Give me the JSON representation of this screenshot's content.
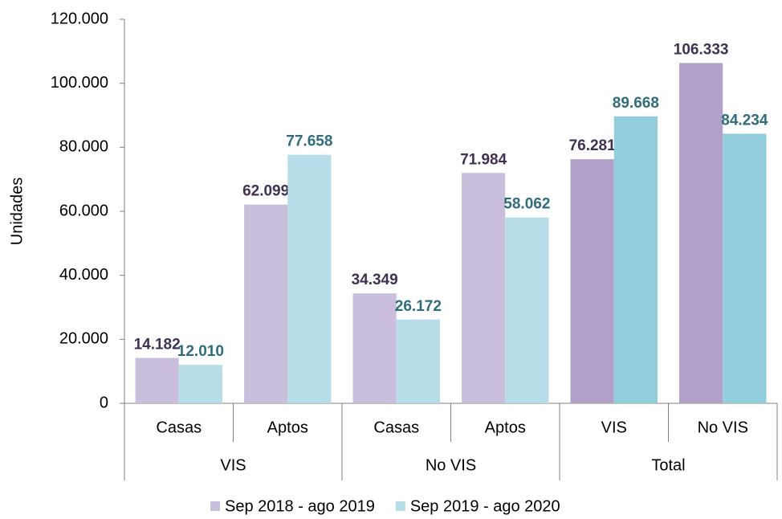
{
  "chart_data": {
    "type": "bar",
    "y_label": "Unidades",
    "groups": [
      {
        "name": "VIS",
        "categories": [
          "Casas",
          "Aptos"
        ]
      },
      {
        "name": "No VIS",
        "categories": [
          "Casas",
          "Aptos"
        ]
      },
      {
        "name": "Total",
        "categories": [
          "VIS",
          "No VIS"
        ]
      }
    ],
    "series": [
      {
        "name": "Sep 2018 - ago 2019",
        "color": "#c9bedb",
        "label_color": "#403152",
        "colors": [
          "#c9bedb",
          "#c9bedb",
          "#c9bedb",
          "#c9bedb",
          "#b1a0c7",
          "#b1a0c7"
        ],
        "values": [
          14182,
          62099,
          34349,
          71984,
          76281,
          106333
        ],
        "value_labels": [
          "14.182",
          "62.099",
          "34.349",
          "71.984",
          "76.281",
          "106.333"
        ]
      },
      {
        "name": "Sep 2019 - ago 2020",
        "color": "#b7dde8",
        "label_color": "#2f6d7d",
        "colors": [
          "#b7dde8",
          "#b7dde8",
          "#b7dde8",
          "#b7dde8",
          "#92cddc",
          "#92cddc"
        ],
        "values": [
          12010,
          77658,
          26172,
          58062,
          89668,
          84234
        ],
        "value_labels": [
          "12.010",
          "77.658",
          "26.172",
          "58.062",
          "89.668",
          "84.234"
        ]
      }
    ],
    "ylim": [
      0,
      120000
    ],
    "yticks": [
      0,
      {
        "value": 20000,
        "label": "20.000"
      },
      {
        "value": 40000,
        "label": "40.000"
      },
      {
        "value": 60000,
        "label": "60.000"
      },
      {
        "value": 80000,
        "label": "80.000"
      },
      {
        "value": 100000,
        "label": "100.000"
      },
      {
        "value": 120000,
        "label": "120.000"
      }
    ],
    "legend": "bottom"
  }
}
